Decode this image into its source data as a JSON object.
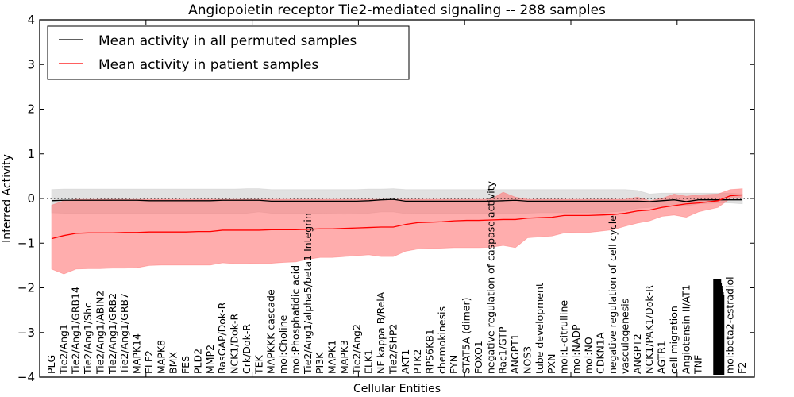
{
  "chart_data": {
    "type": "line",
    "title": "Angiopoietin receptor Tie2-mediated signaling -- 288 samples",
    "xlabel": "Cellular Entities",
    "ylabel": "Inferred Activity",
    "ylim": [
      -4,
      4
    ],
    "yticks": [
      "4",
      "3",
      "2",
      "1",
      "0",
      "−1",
      "−2",
      "−3",
      "−4"
    ],
    "ytick_values": [
      4,
      3,
      2,
      1,
      0,
      -1,
      -2,
      -3,
      -4
    ],
    "grid": false,
    "reference_line": 0,
    "legend": {
      "placement": "top-left",
      "entries": [
        {
          "label": "Mean activity in all permuted samples",
          "color": "#000000"
        },
        {
          "label": "Mean activity in patient samples",
          "color": "#ff0000"
        }
      ]
    },
    "colors": {
      "permuted_line": "#000000",
      "permuted_band": "#c8c8c8",
      "patient_line": "#ff0000",
      "patient_band": "#ff7777"
    },
    "categories": [
      "PLG",
      "Tie2/Ang1",
      "Tie2/Ang1/GRB14",
      "Tie2/Ang1/Shc",
      "Tie2/Ang1/ABIN2",
      "Tie2/Ang1/GRB2",
      "Tie2/Ang1/GRB7",
      "MAPK14",
      "ELF2",
      "MAPK8",
      "BMX",
      "FES",
      "PLD2",
      "MMP2",
      "RasGAP/Dok-R",
      "NCK1/Dok-R",
      "Crk/Dok-R",
      "TEK",
      "MAPKKK cascade",
      "mol:Choline",
      "mol:Phosphatidic acid",
      "Tie2/Ang1/alpha5/beta1 Integrin",
      "PI3K",
      "MAPK1",
      "MAPK3",
      "Tie2/Ang2",
      "ELK1",
      "NF kappa B/RelA",
      "Tie2/SHP2",
      "AKT1",
      "PTK2",
      "RPS6KB1",
      "chemokinesis",
      "FYN",
      "STAT5A (dimer)",
      "FOXO1",
      "negative regulation of caspase activity",
      "Rac1/GTP",
      "ANGPT1",
      "NOS3",
      "tube development",
      "PXN",
      "mol:L-citrulline",
      "mol:NADP",
      "mol:NO",
      "CDKN1A",
      "negative regulation of cell cycle",
      "vasculogenesis",
      "ANGPT2",
      "NCK1/PAK1/Dok-R",
      "AGTR1",
      "cell migration",
      "Angiotensin II/AT1",
      "TNF",
      "",
      "mol:beta2-estradiol",
      "F2"
    ],
    "x_positions": [
      0,
      1,
      2,
      3,
      4,
      5,
      6,
      7,
      8,
      9,
      10,
      11,
      12,
      13,
      14,
      15,
      16,
      17,
      18,
      19,
      20,
      21,
      22,
      23,
      24,
      25,
      26,
      27,
      28,
      29,
      30,
      31,
      32,
      33,
      34,
      35,
      36,
      37,
      38,
      39,
      40,
      41,
      42,
      43,
      44,
      45,
      46,
      47,
      48,
      49,
      50,
      51,
      52,
      53,
      54.6,
      55.6,
      56.6
    ],
    "overlapping_label_cluster_note": "Several overlapping, illegible labels drawn at one position between TNF and mol:beta2-estradiol",
    "xlim": [
      -1,
      57.5
    ],
    "series": [
      {
        "name": "Mean activity in all permuted samples",
        "values": [
          -0.05,
          -0.04,
          -0.04,
          -0.04,
          -0.04,
          -0.04,
          -0.04,
          -0.04,
          -0.05,
          -0.05,
          -0.05,
          -0.05,
          -0.05,
          -0.05,
          -0.04,
          -0.04,
          -0.04,
          -0.04,
          -0.06,
          -0.06,
          -0.06,
          -0.06,
          -0.06,
          -0.06,
          -0.06,
          -0.06,
          -0.05,
          -0.03,
          -0.02,
          -0.06,
          -0.06,
          -0.06,
          -0.06,
          -0.06,
          -0.06,
          -0.06,
          -0.06,
          -0.05,
          -0.04,
          -0.06,
          -0.06,
          -0.06,
          -0.06,
          -0.06,
          -0.06,
          -0.06,
          -0.06,
          -0.06,
          -0.06,
          -0.07,
          -0.05,
          -0.03,
          -0.07,
          -0.03,
          -0.03,
          -0.03,
          -0.03
        ],
        "lower": [
          -0.32,
          -0.33,
          -0.33,
          -0.33,
          -0.33,
          -0.33,
          -0.33,
          -0.33,
          -0.33,
          -0.33,
          -0.33,
          -0.33,
          -0.33,
          -0.33,
          -0.33,
          -0.33,
          -0.33,
          -0.3,
          -0.33,
          -0.33,
          -0.33,
          -0.33,
          -0.33,
          -0.34,
          -0.35,
          -0.34,
          -0.33,
          -0.3,
          -0.3,
          -0.34,
          -0.33,
          -0.33,
          -0.33,
          -0.33,
          -0.33,
          -0.33,
          -0.33,
          -0.33,
          -0.33,
          -0.33,
          -0.32,
          -0.32,
          -0.32,
          -0.32,
          -0.32,
          -0.32,
          -0.3,
          -0.28,
          -0.22,
          -0.2,
          -0.18,
          -0.13,
          -0.17,
          -0.12,
          -0.1,
          -0.1,
          -0.12
        ],
        "upper": [
          0.2,
          0.21,
          0.21,
          0.21,
          0.21,
          0.21,
          0.21,
          0.21,
          0.21,
          0.21,
          0.21,
          0.21,
          0.21,
          0.21,
          0.21,
          0.21,
          0.22,
          0.22,
          0.2,
          0.2,
          0.2,
          0.2,
          0.2,
          0.2,
          0.2,
          0.2,
          0.21,
          0.21,
          0.22,
          0.2,
          0.2,
          0.2,
          0.2,
          0.2,
          0.2,
          0.2,
          0.2,
          0.2,
          0.2,
          0.2,
          0.2,
          0.2,
          0.2,
          0.2,
          0.2,
          0.2,
          0.2,
          0.2,
          0.18,
          0.1,
          0.12,
          0.12,
          0.12,
          0.12,
          0.12,
          0.12,
          0.1
        ]
      },
      {
        "name": "Mean activity in patient samples",
        "values": [
          -0.9,
          -0.83,
          -0.78,
          -0.77,
          -0.77,
          -0.77,
          -0.76,
          -0.76,
          -0.75,
          -0.75,
          -0.75,
          -0.75,
          -0.74,
          -0.74,
          -0.71,
          -0.71,
          -0.71,
          -0.71,
          -0.7,
          -0.7,
          -0.7,
          -0.69,
          -0.68,
          -0.68,
          -0.67,
          -0.66,
          -0.65,
          -0.64,
          -0.64,
          -0.58,
          -0.54,
          -0.53,
          -0.52,
          -0.5,
          -0.49,
          -0.49,
          -0.48,
          -0.47,
          -0.47,
          -0.44,
          -0.43,
          -0.42,
          -0.38,
          -0.38,
          -0.38,
          -0.37,
          -0.36,
          -0.33,
          -0.28,
          -0.26,
          -0.2,
          -0.16,
          -0.12,
          -0.1,
          -0.05,
          0.06,
          0.08
        ],
        "lower": [
          -1.58,
          -1.69,
          -1.58,
          -1.57,
          -1.57,
          -1.56,
          -1.56,
          -1.55,
          -1.5,
          -1.49,
          -1.49,
          -1.49,
          -1.49,
          -1.49,
          -1.44,
          -1.46,
          -1.46,
          -1.45,
          -1.45,
          -1.43,
          -1.42,
          -1.36,
          -1.32,
          -1.32,
          -1.3,
          -1.28,
          -1.26,
          -1.3,
          -1.3,
          -1.18,
          -1.13,
          -1.12,
          -1.11,
          -1.1,
          -1.1,
          -1.1,
          -1.09,
          -1.05,
          -1.1,
          -0.88,
          -0.86,
          -0.84,
          -0.77,
          -0.76,
          -0.76,
          -0.73,
          -0.7,
          -0.62,
          -0.55,
          -0.5,
          -0.4,
          -0.37,
          -0.42,
          -0.3,
          -0.2,
          0.0,
          0.0
        ],
        "upper": [
          -0.15,
          -0.05,
          -0.02,
          -0.02,
          -0.02,
          -0.02,
          -0.02,
          -0.02,
          -0.02,
          -0.02,
          -0.02,
          -0.02,
          -0.02,
          -0.02,
          -0.02,
          -0.02,
          -0.02,
          -0.02,
          -0.02,
          -0.02,
          -0.02,
          -0.02,
          -0.02,
          -0.02,
          -0.02,
          -0.02,
          -0.02,
          -0.02,
          -0.02,
          -0.02,
          -0.02,
          -0.02,
          -0.02,
          -0.02,
          -0.02,
          -0.02,
          -0.02,
          0.14,
          0.03,
          -0.02,
          -0.02,
          -0.02,
          -0.02,
          -0.02,
          -0.02,
          -0.02,
          -0.02,
          -0.02,
          0.03,
          -0.05,
          0.0,
          0.1,
          0.05,
          0.08,
          0.1,
          0.2,
          0.22
        ]
      }
    ]
  }
}
